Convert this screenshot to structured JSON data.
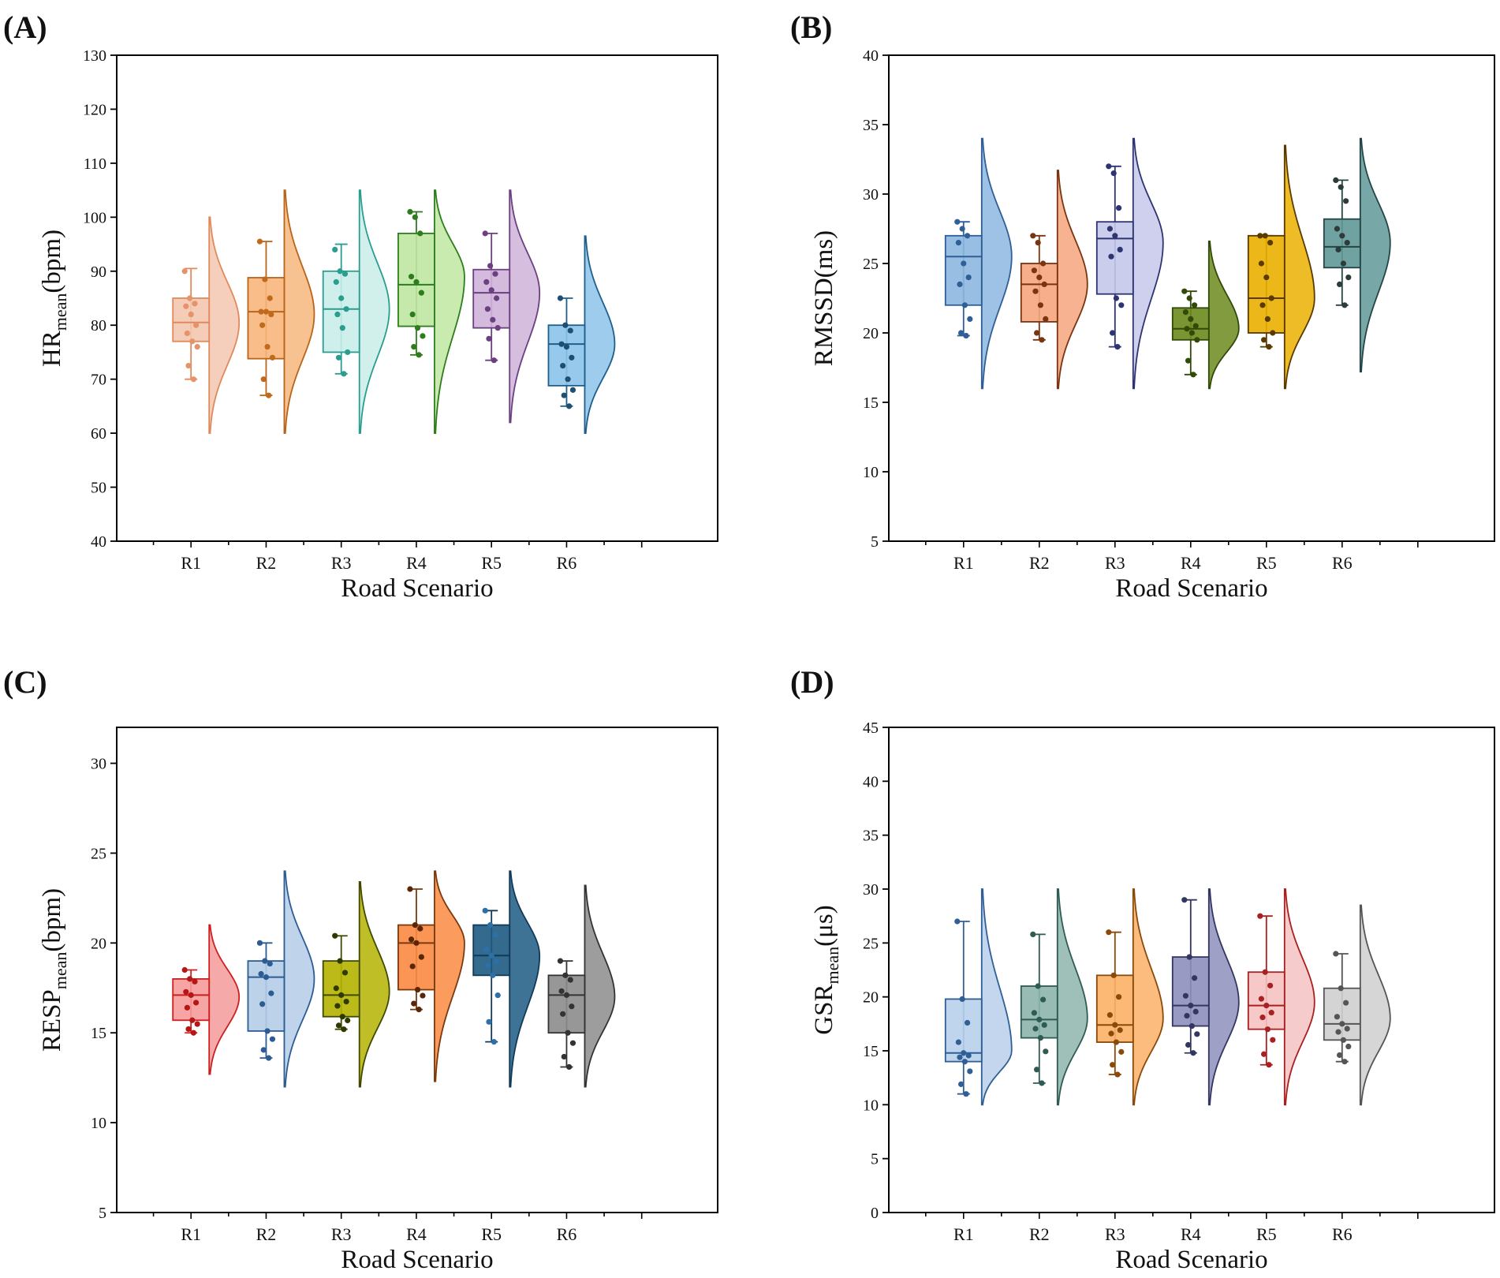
{
  "chart_data": [
    {
      "panel": "(A)",
      "type": "raincloud",
      "ylabel_main": "HR",
      "ylabel_sub": "mean",
      "ylabel_unit": "(bpm)",
      "xlabel": "Road Scenario",
      "ylim": [
        40,
        130
      ],
      "yticks": [
        40,
        50,
        60,
        70,
        80,
        90,
        100,
        110,
        120,
        130
      ],
      "categories": [
        "R1",
        "R2",
        "R3",
        "R4",
        "R5",
        "R6"
      ],
      "series": [
        {
          "name": "R1",
          "fill": "#f3c6b0",
          "stroke": "#e08a5c",
          "dot": "#e5936a",
          "q1": 77,
          "median": 80.5,
          "q3": 85,
          "whisker_low": 70,
          "whisker_high": 90.5,
          "cloud_min": 60,
          "cloud_peak": 80.5,
          "cloud_max": 100,
          "points": [
            90,
            85,
            84,
            83.5,
            82,
            80,
            78.5,
            77,
            76,
            72.5,
            70
          ]
        },
        {
          "name": "R2",
          "fill": "#f7b67c",
          "stroke": "#b8651a",
          "dot": "#c06a1c",
          "q1": 73.8,
          "median": 82.5,
          "q3": 88.8,
          "whisker_low": 67,
          "whisker_high": 95.5,
          "cloud_min": 60,
          "cloud_peak": 82,
          "cloud_max": 105,
          "points": [
            95.5,
            88.5,
            85,
            82.5,
            82.5,
            82,
            80,
            76,
            74,
            70,
            67
          ]
        },
        {
          "name": "R3",
          "fill": "#c9ede9",
          "stroke": "#2a9d8f",
          "dot": "#2a9d8f",
          "q1": 75,
          "median": 83,
          "q3": 90,
          "whisker_low": 71,
          "whisker_high": 95,
          "cloud_min": 60,
          "cloud_peak": 83,
          "cloud_max": 105,
          "points": [
            94,
            90,
            89.5,
            88,
            85,
            83,
            82,
            79.5,
            75,
            74,
            71
          ]
        },
        {
          "name": "R4",
          "fill": "#bfe7a2",
          "stroke": "#2e7d1c",
          "dot": "#2e7d1c",
          "q1": 79.8,
          "median": 87.5,
          "q3": 97,
          "whisker_low": 74.5,
          "whisker_high": 101,
          "cloud_min": 60,
          "cloud_peak": 89,
          "cloud_max": 105,
          "points": [
            101,
            100,
            97,
            89,
            88,
            86,
            82,
            79.5,
            78,
            76,
            74.5
          ]
        },
        {
          "name": "R5",
          "fill": "#cfb3d9",
          "stroke": "#6b3f80",
          "dot": "#6b3f80",
          "q1": 79.5,
          "median": 86,
          "q3": 90.3,
          "whisker_low": 73.5,
          "whisker_high": 97,
          "cloud_min": 62,
          "cloud_peak": 86,
          "cloud_max": 105,
          "points": [
            97,
            91,
            89.5,
            88,
            86.5,
            85,
            83,
            81,
            79.5,
            77.5,
            73.5
          ]
        },
        {
          "name": "R6",
          "fill": "#8cc3ea",
          "stroke": "#1f5f8b",
          "dot": "#1d4e74",
          "q1": 68.8,
          "median": 76.5,
          "q3": 80,
          "whisker_low": 65,
          "whisker_high": 85,
          "cloud_min": 60,
          "cloud_peak": 76.5,
          "cloud_max": 96.5,
          "points": [
            85,
            80,
            79,
            76.5,
            76,
            74,
            72.5,
            70,
            68,
            67,
            65
          ]
        }
      ]
    },
    {
      "panel": "(B)",
      "type": "raincloud",
      "ylabel_main": "RMSSD",
      "ylabel_sub": "",
      "ylabel_unit": "(ms)",
      "xlabel": "Road Scenario",
      "ylim": [
        5,
        40
      ],
      "yticks": [
        5,
        10,
        15,
        20,
        25,
        30,
        35,
        40
      ],
      "categories": [
        "R1",
        "R2",
        "R3",
        "R4",
        "R5",
        "R6"
      ],
      "series": [
        {
          "name": "R1",
          "fill": "#8db7e0",
          "stroke": "#2f5f95",
          "dot": "#2f5f95",
          "q1": 22,
          "median": 25.5,
          "q3": 27,
          "whisker_low": 19.8,
          "whisker_high": 28,
          "cloud_min": 16,
          "cloud_peak": 25.5,
          "cloud_max": 34,
          "points": [
            28,
            27.5,
            27,
            26.5,
            25,
            24,
            23.5,
            22,
            21,
            20,
            19.8
          ]
        },
        {
          "name": "R2",
          "fill": "#f6a57e",
          "stroke": "#7a3410",
          "dot": "#7a3410",
          "q1": 20.8,
          "median": 23.5,
          "q3": 25,
          "whisker_low": 19.5,
          "whisker_high": 27,
          "cloud_min": 16,
          "cloud_peak": 23.5,
          "cloud_max": 31.7,
          "points": [
            27,
            26.5,
            25,
            24.5,
            24,
            23.5,
            23,
            22,
            21,
            20,
            19.5
          ]
        },
        {
          "name": "R3",
          "fill": "#c5c8ea",
          "stroke": "#2e3472",
          "dot": "#2e3472",
          "q1": 22.8,
          "median": 26.8,
          "q3": 28,
          "whisker_low": 19,
          "whisker_high": 32,
          "cloud_min": 16,
          "cloud_peak": 26.5,
          "cloud_max": 34,
          "points": [
            32,
            31.5,
            29,
            27.5,
            27,
            26,
            25.5,
            22.5,
            22,
            20,
            19
          ]
        },
        {
          "name": "R4",
          "fill": "#6c8a1d",
          "stroke": "#314a08",
          "dot": "#314a08",
          "q1": 19.5,
          "median": 20.3,
          "q3": 21.8,
          "whisker_low": 17,
          "whisker_high": 23,
          "cloud_min": 16,
          "cloud_peak": 20.3,
          "cloud_max": 26.6,
          "points": [
            23,
            22.5,
            22,
            21.5,
            21,
            20.5,
            20.3,
            20,
            19.5,
            18,
            17
          ]
        },
        {
          "name": "R5",
          "fill": "#eab000",
          "stroke": "#5a3a00",
          "dot": "#5a3a00",
          "q1": 20,
          "median": 22.5,
          "q3": 27,
          "whisker_low": 19,
          "whisker_high": 27,
          "cloud_min": 16,
          "cloud_peak": 22.5,
          "cloud_max": 33.5,
          "points": [
            27,
            27,
            26.5,
            25,
            24,
            22.5,
            22,
            21,
            20,
            19.5,
            19
          ]
        },
        {
          "name": "R6",
          "fill": "#5f9896",
          "stroke": "#254545",
          "dot": "#2d3b3b",
          "q1": 24.7,
          "median": 26.2,
          "q3": 28.2,
          "whisker_low": 22,
          "whisker_high": 31,
          "cloud_min": 17.2,
          "cloud_peak": 26.5,
          "cloud_max": 34,
          "points": [
            31,
            30.5,
            29.5,
            27.5,
            27,
            26.5,
            26,
            25,
            24,
            23.5,
            22
          ]
        }
      ]
    },
    {
      "panel": "(C)",
      "type": "raincloud",
      "ylabel_main": "RESP",
      "ylabel_sub": "mean",
      "ylabel_unit": "(bpm)",
      "xlabel": "Road Scenario",
      "ylim": [
        5,
        32
      ],
      "yticks": [
        5,
        10,
        15,
        20,
        25,
        30
      ],
      "categories": [
        "R1",
        "R2",
        "R3",
        "R4",
        "R5",
        "R6"
      ],
      "series": [
        {
          "name": "R1",
          "fill": "#f59a9a",
          "stroke": "#cc1f1f",
          "dot": "#b51616",
          "q1": 15.7,
          "median": 17.1,
          "q3": 18,
          "whisker_low": 15,
          "whisker_high": 18.5,
          "cloud_min": 12.7,
          "cloud_peak": 17,
          "cloud_max": 21
        },
        {
          "name": "R2",
          "fill": "#b4cde6",
          "stroke": "#2d5c94",
          "dot": "#2d5c94",
          "q1": 15.1,
          "median": 18.1,
          "q3": 19,
          "whisker_low": 13.6,
          "whisker_high": 20,
          "cloud_min": 12,
          "cloud_peak": 18,
          "cloud_max": 24
        },
        {
          "name": "R3",
          "fill": "#b5b300",
          "stroke": "#3f4a00",
          "dot": "#2f3a00",
          "q1": 15.9,
          "median": 17.1,
          "q3": 19,
          "whisker_low": 15.2,
          "whisker_high": 20.4,
          "cloud_min": 12,
          "cloud_peak": 17.3,
          "cloud_max": 23.4
        },
        {
          "name": "R4",
          "fill": "#fa8a42",
          "stroke": "#7a3a0e",
          "dot": "#5a2608",
          "q1": 17.4,
          "median": 20,
          "q3": 21,
          "whisker_low": 16.3,
          "whisker_high": 23,
          "cloud_min": 12.3,
          "cloud_peak": 20,
          "cloud_max": 24
        },
        {
          "name": "R5",
          "fill": "#1d5a82",
          "stroke": "#113a58",
          "dot": "#2d6fa8",
          "q1": 18.2,
          "median": 19.3,
          "q3": 21,
          "whisker_low": 14.5,
          "whisker_high": 21.8,
          "cloud_min": 12,
          "cloud_peak": 19.3,
          "cloud_max": 24
        },
        {
          "name": "R6",
          "fill": "#8c8c8c",
          "stroke": "#333333",
          "dot": "#333333",
          "q1": 15,
          "median": 17.1,
          "q3": 18.2,
          "whisker_low": 13.1,
          "whisker_high": 19,
          "cloud_min": 12,
          "cloud_peak": 17,
          "cloud_max": 23.2
        }
      ]
    },
    {
      "panel": "(D)",
      "type": "raincloud",
      "ylabel_main": "GSR",
      "ylabel_sub": "mean",
      "ylabel_unit": "(μs)",
      "xlabel": "Road Scenario",
      "ylim": [
        0,
        45
      ],
      "yticks": [
        0,
        5,
        10,
        15,
        20,
        25,
        30,
        35,
        40,
        45
      ],
      "categories": [
        "R1",
        "R2",
        "R3",
        "R4",
        "R5",
        "R6"
      ],
      "series": [
        {
          "name": "R1",
          "fill": "#b8cfeb",
          "stroke": "#2f5f95",
          "dot": "#2f5f95",
          "q1": 14,
          "median": 14.8,
          "q3": 19.8,
          "whisker_low": 11,
          "whisker_high": 27,
          "cloud_min": 10,
          "cloud_peak": 15,
          "cloud_max": 30
        },
        {
          "name": "R2",
          "fill": "#8db5ac",
          "stroke": "#2f5b55",
          "dot": "#2f5b55",
          "q1": 16.2,
          "median": 17.9,
          "q3": 21,
          "whisker_low": 12,
          "whisker_high": 25.8,
          "cloud_min": 10,
          "cloud_peak": 18,
          "cloud_max": 30
        },
        {
          "name": "R3",
          "fill": "#fcb066",
          "stroke": "#8a4a0a",
          "dot": "#8a4a0a",
          "q1": 15.8,
          "median": 17.4,
          "q3": 22,
          "whisker_low": 12.8,
          "whisker_high": 26,
          "cloud_min": 10,
          "cloud_peak": 18,
          "cloud_max": 30
        },
        {
          "name": "R4",
          "fill": "#8e8fbc",
          "stroke": "#33365f",
          "dot": "#33365f",
          "q1": 17.3,
          "median": 19.2,
          "q3": 23.7,
          "whisker_low": 14.8,
          "whisker_high": 29,
          "cloud_min": 10,
          "cloud_peak": 19.5,
          "cloud_max": 30
        },
        {
          "name": "R5",
          "fill": "#f5c2c2",
          "stroke": "#a82020",
          "dot": "#a82020",
          "q1": 17,
          "median": 19.2,
          "q3": 22.3,
          "whisker_low": 13.7,
          "whisker_high": 27.5,
          "cloud_min": 10,
          "cloud_peak": 19.5,
          "cloud_max": 30
        },
        {
          "name": "R6",
          "fill": "#cfcfcf",
          "stroke": "#555555",
          "dot": "#555555",
          "q1": 16,
          "median": 17.5,
          "q3": 20.8,
          "whisker_low": 14,
          "whisker_high": 24,
          "cloud_min": 10,
          "cloud_peak": 18,
          "cloud_max": 28.5
        }
      ]
    }
  ]
}
